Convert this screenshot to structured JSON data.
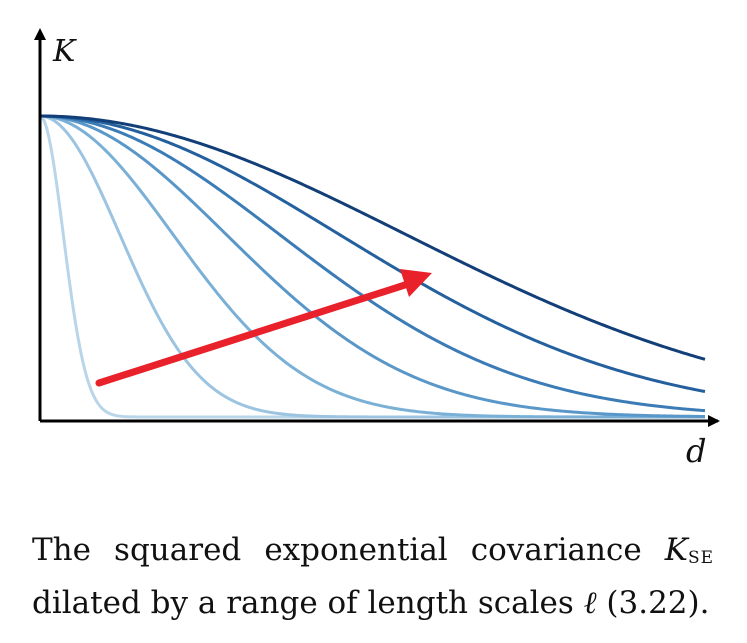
{
  "figure": {
    "y_axis_label": "K",
    "x_axis_label": "d",
    "arrow_color": "#e8212b"
  },
  "caption": {
    "text_before": "The squared exponential covariance ",
    "symbol": "K",
    "subscript": "SE",
    "text_middle": " dilated by a range of length scales ",
    "ell": "ℓ",
    "ref": " (3.22)."
  },
  "chart_data": {
    "type": "line",
    "function": "exp(-d^2 / (2 * l^2))",
    "ylim": [
      0,
      1
    ],
    "x_range": [
      0,
      1
    ],
    "length_scales": [
      0.035,
      0.12,
      0.2,
      0.28,
      0.36,
      0.45,
      0.55
    ],
    "series_colors": [
      "#b9d5ea",
      "#9cc4e0",
      "#7bb0d6",
      "#5a97c9",
      "#3b7cb7",
      "#24609e",
      "#123f78"
    ],
    "grid": false,
    "legend": "none"
  }
}
